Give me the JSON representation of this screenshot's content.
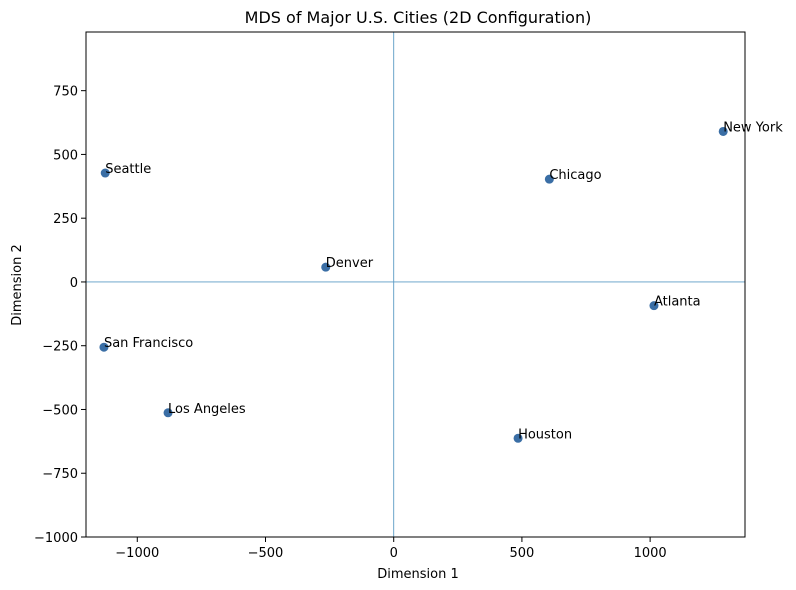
{
  "chart_data": {
    "type": "scatter",
    "title": "MDS of Major U.S. Cities (2D Configuration)",
    "xlabel": "Dimension 1",
    "ylabel": "Dimension 2",
    "xlim": [
      -1200,
      1370
    ],
    "ylim": [
      -1000,
      980
    ],
    "xticks": [
      -1000,
      -500,
      0,
      500,
      1000
    ],
    "yticks": [
      -1000,
      -750,
      -500,
      -250,
      0,
      250,
      500,
      750
    ],
    "xtick_labels": [
      "−1000",
      "−500",
      "0",
      "500",
      "1000"
    ],
    "ytick_labels": [
      "−1000",
      "−750",
      "−500",
      "−250",
      "0",
      "250",
      "500",
      "750"
    ],
    "zero_lines": true,
    "grid": false,
    "colors": {
      "points": "#3a6ea5",
      "zero_lines": "#5b9bc4"
    },
    "points": [
      {
        "label": "New York",
        "x": 1285,
        "y": 590
      },
      {
        "label": "Chicago",
        "x": 607,
        "y": 403
      },
      {
        "label": "Seattle",
        "x": -1125,
        "y": 427
      },
      {
        "label": "Denver",
        "x": -265,
        "y": 58
      },
      {
        "label": "Atlanta",
        "x": 1015,
        "y": -93
      },
      {
        "label": "San Francisco",
        "x": -1130,
        "y": -256
      },
      {
        "label": "Los Angeles",
        "x": -880,
        "y": -513
      },
      {
        "label": "Houston",
        "x": 485,
        "y": -613
      }
    ]
  }
}
